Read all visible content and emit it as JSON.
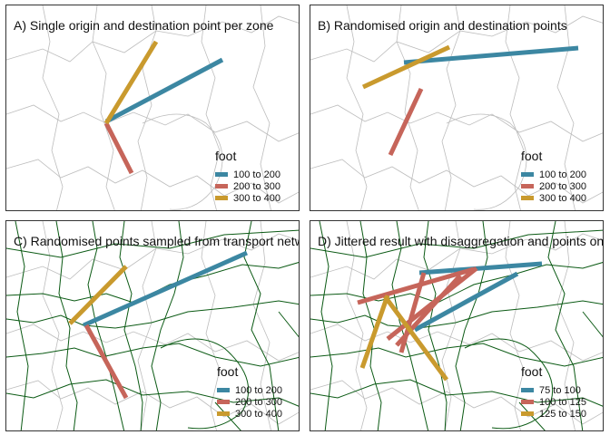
{
  "panels": [
    {
      "title": "A) Single origin and destination point per zone",
      "legend": {
        "title": "foot",
        "items": [
          {
            "label": "100 to 200",
            "color": "#3c87a2"
          },
          {
            "label": "200 to 300",
            "color": "#c6655a"
          },
          {
            "label": "300 to 400",
            "color": "#c99a2e"
          }
        ]
      }
    },
    {
      "title": "B) Randomised origin and destination points",
      "legend": {
        "title": "foot",
        "items": [
          {
            "label": "100 to 200",
            "color": "#3c87a2"
          },
          {
            "label": "200 to 300",
            "color": "#c6655a"
          },
          {
            "label": "300 to 400",
            "color": "#c99a2e"
          }
        ]
      }
    },
    {
      "title": "C) Randomised points sampled from transport network",
      "legend": {
        "title": "foot",
        "items": [
          {
            "label": "100 to 200",
            "color": "#3c87a2"
          },
          {
            "label": "200 to 300",
            "color": "#c6655a"
          },
          {
            "label": "300 to 400",
            "color": "#c99a2e"
          }
        ]
      }
    },
    {
      "title": "D) Jittered result with disaggregation and points on network",
      "legend": {
        "title": "foot",
        "items": [
          {
            "label": "75 to 100",
            "color": "#3c87a2"
          },
          {
            "label": "100 to 125",
            "color": "#c6655a"
          },
          {
            "label": "125 to 150",
            "color": "#c99a2e"
          }
        ]
      }
    }
  ]
}
